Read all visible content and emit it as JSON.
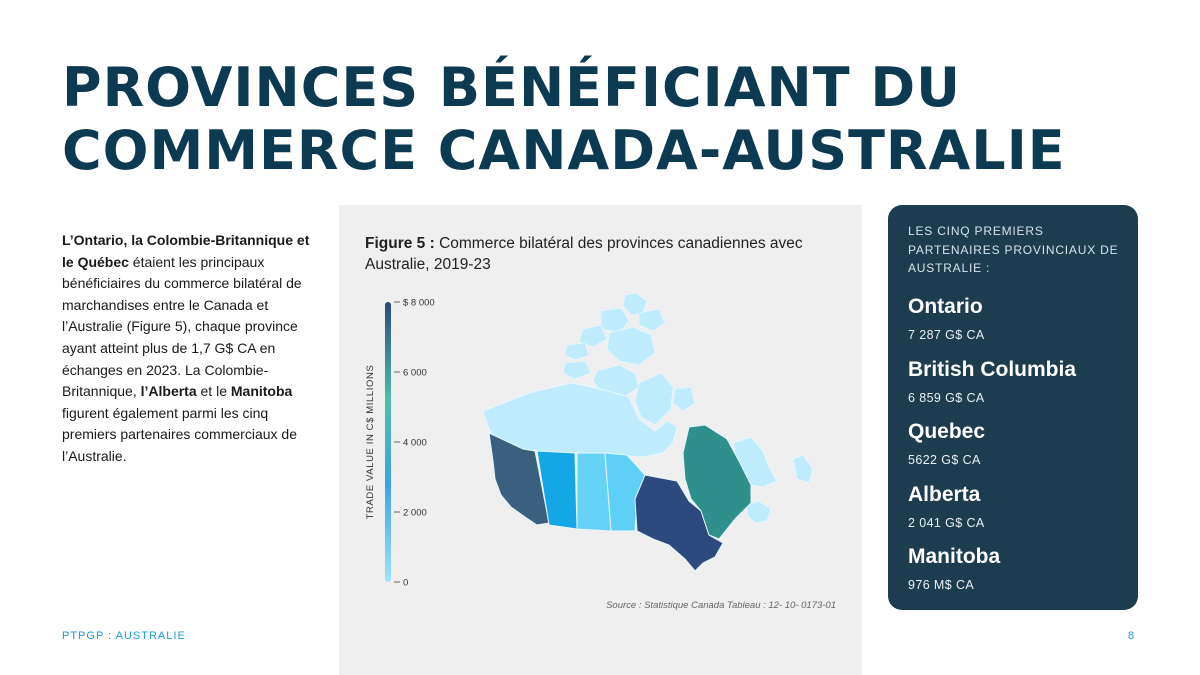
{
  "title": {
    "line1": "PROVINCES BÉNÉFICIANT DU",
    "line2": "COMMERCE CANADA-AUSTRALIE"
  },
  "intro": {
    "bold1": "L’Ontario, la Colombie-Britannique et le Québec",
    "text1": " étaient les principaux bénéficiaires du commerce bilatéral de marchandises entre le Canada et l’Australie (Figure 5), chaque province ayant atteint plus de 1,7 G$ CA en échanges en 2023. La Colombie-Britannique, ",
    "bold2": "l’Alberta",
    "text2": " et le ",
    "bold3": "Manitoba",
    "text3": " figurent également parmi les cinq premiers partenaires commerciaux de l’Australie."
  },
  "figure": {
    "label": "Figure 5 :",
    "caption": " Commerce bilatéral des provinces canadiennes avec Australie, 2019-23",
    "source": "Source : Statistique Canada Tableau : 12- 10- 0173-01"
  },
  "chart_data": {
    "type": "heatmap",
    "colorbar": {
      "label": "TRADE VALUE IN C$ MILLIONS",
      "ticks": [
        {
          "value": 8000,
          "label": "$ 8 000"
        },
        {
          "value": 6000,
          "label": "6 000"
        },
        {
          "value": 4000,
          "label": "4 000"
        },
        {
          "value": 2000,
          "label": "2 000"
        },
        {
          "value": 0,
          "label": "0"
        }
      ],
      "range": [
        0,
        8000
      ],
      "stops": [
        "#9ee4fb",
        "#3aa4dd",
        "#4dbfa8",
        "#2c4a7d"
      ]
    },
    "regions": [
      {
        "name": "Ontario",
        "value": 7287,
        "color": "#2c4a7d"
      },
      {
        "name": "British Columbia",
        "value": 6859,
        "color": "#3b5f7f"
      },
      {
        "name": "Quebec",
        "value": 5622,
        "color": "#2f8f8c"
      },
      {
        "name": "Alberta",
        "value": 2041,
        "color": "#14a6e5"
      },
      {
        "name": "Manitoba",
        "value": 976,
        "color": "#5fd0f5"
      },
      {
        "name": "Saskatchewan",
        "value": 900,
        "color": "#66d2f5"
      },
      {
        "name": "Territories",
        "value": 0,
        "color": "#bfecfd"
      },
      {
        "name": "Atlantic",
        "value": 100,
        "color": "#bfecfd"
      }
    ]
  },
  "sidebar": {
    "heading": "LES CINQ PREMIERS PARTENAIRES PROVINCIAUX DE AUSTRALIE :",
    "items": [
      {
        "name": "Ontario",
        "value": "7 287 G$ CA"
      },
      {
        "name": "British Columbia",
        "value": "6 859 G$ CA"
      },
      {
        "name": "Quebec",
        "value": "5622 G$ CA"
      },
      {
        "name": "Alberta",
        "value": "2 041 G$ CA"
      },
      {
        "name": "Manitoba",
        "value": "976 M$ CA"
      }
    ]
  },
  "footer": {
    "left": "PTPGP : AUSTRALIE",
    "page": "8"
  }
}
